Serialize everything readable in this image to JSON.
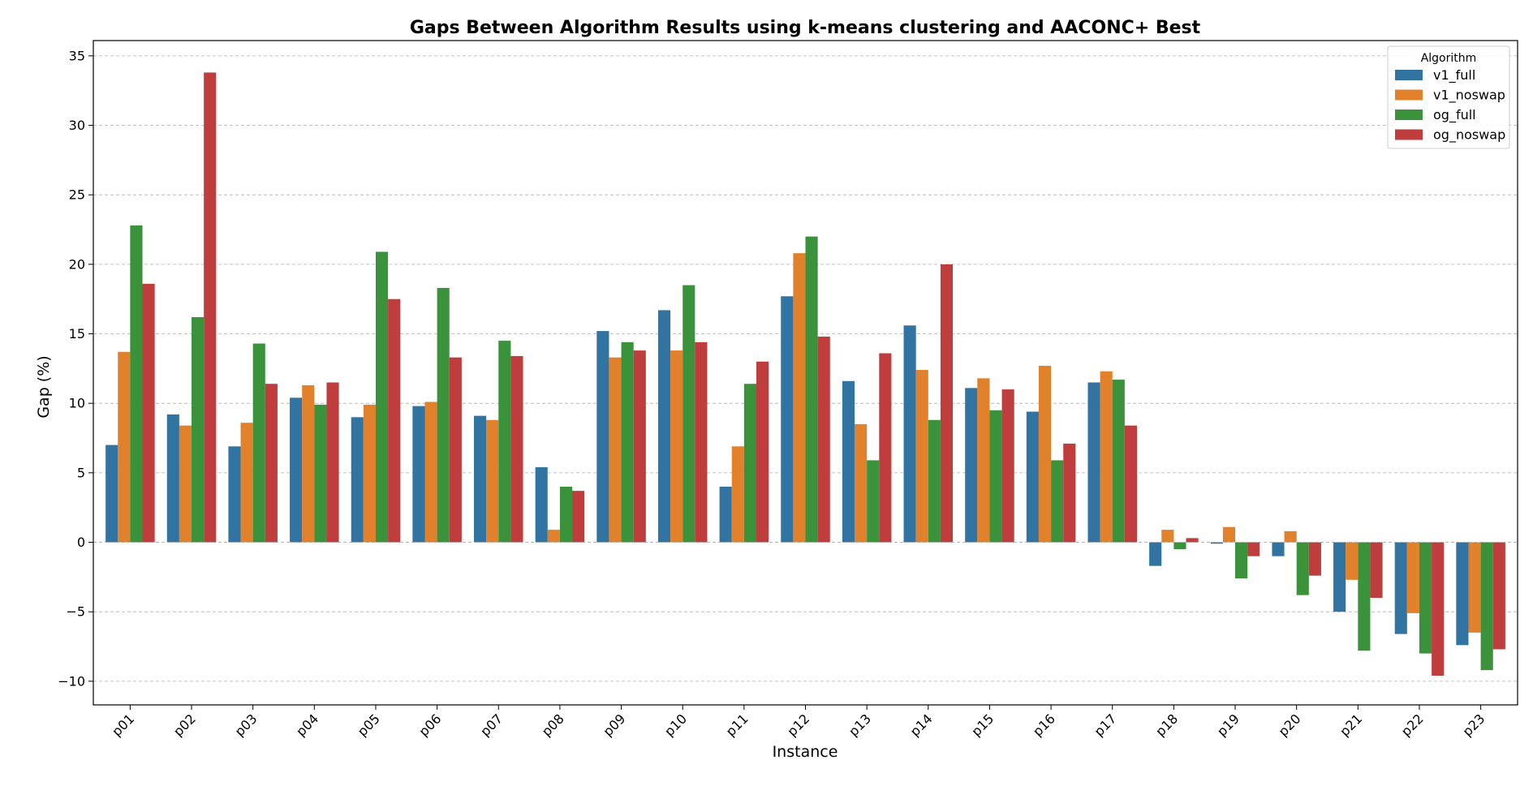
{
  "chart_data": {
    "type": "bar",
    "title": "Gaps Between Algorithm Results using k-means clustering and AACONC+ Best",
    "xlabel": "Instance",
    "ylabel": "Gap (%)",
    "ylim": [
      -11.7,
      36.1
    ],
    "yticks": [
      -10,
      -5,
      0,
      5,
      10,
      15,
      20,
      25,
      30,
      35
    ],
    "grid": true,
    "legend_title": "Algorithm",
    "legend_position": "top-right",
    "categories": [
      "p01",
      "p02",
      "p03",
      "p04",
      "p05",
      "p06",
      "p07",
      "p08",
      "p09",
      "p10",
      "p11",
      "p12",
      "p13",
      "p14",
      "p15",
      "p16",
      "p17",
      "p18",
      "p19",
      "p20",
      "p21",
      "p22",
      "p23"
    ],
    "series": [
      {
        "name": "v1_full",
        "color": "#3274a1",
        "values": [
          7.0,
          9.2,
          6.9,
          10.4,
          9.0,
          9.8,
          9.1,
          5.4,
          15.2,
          16.7,
          4.0,
          17.7,
          11.6,
          15.6,
          11.1,
          9.4,
          11.5,
          -1.7,
          -0.1,
          -1.0,
          -5.0,
          -6.6,
          -7.4
        ]
      },
      {
        "name": "v1_noswap",
        "color": "#e1812c",
        "values": [
          13.7,
          8.4,
          8.6,
          11.3,
          9.9,
          10.1,
          8.8,
          0.9,
          13.3,
          13.8,
          6.9,
          20.8,
          8.5,
          12.4,
          11.8,
          12.7,
          12.3,
          0.9,
          1.1,
          0.8,
          -2.7,
          -5.1,
          -6.5
        ]
      },
      {
        "name": "og_full",
        "color": "#3a923a",
        "values": [
          22.8,
          16.2,
          14.3,
          9.9,
          20.9,
          18.3,
          14.5,
          4.0,
          14.4,
          18.5,
          11.4,
          22.0,
          5.9,
          8.8,
          9.5,
          5.9,
          11.7,
          -0.5,
          -2.6,
          -3.8,
          -7.8,
          -8.0,
          -9.2
        ]
      },
      {
        "name": "og_noswap",
        "color": "#c03d3e",
        "values": [
          18.6,
          33.8,
          11.4,
          11.5,
          17.5,
          13.3,
          13.4,
          3.7,
          13.8,
          14.4,
          13.0,
          14.8,
          13.6,
          20.0,
          11.0,
          7.1,
          8.4,
          0.3,
          -1.0,
          -2.4,
          -4.0,
          -9.6,
          -7.7
        ]
      }
    ]
  }
}
